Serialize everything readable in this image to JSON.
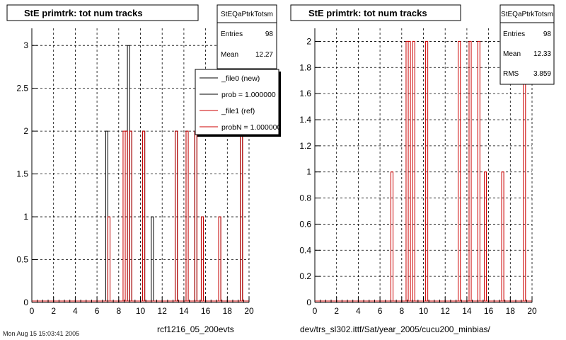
{
  "chart_data": [
    {
      "type": "bar",
      "title": "StE primtrk: tot num tracks",
      "xlim": [
        0,
        20
      ],
      "ylim": [
        0,
        3.2
      ],
      "xticks": [
        "0",
        "2",
        "4",
        "6",
        "8",
        "10",
        "12",
        "14",
        "16",
        "18",
        "20"
      ],
      "yticks": [
        "0",
        "0.5",
        "1",
        "1.5",
        "2",
        "2.5",
        "3"
      ],
      "grid": true,
      "bin_width": 0.2,
      "series": [
        {
          "name": "_file0 (new)",
          "color": "#000000",
          "x": [
            6.8,
            7.0,
            8.6,
            8.8,
            9.0,
            10.2,
            11.0,
            13.2,
            14.2,
            15.0,
            15.6,
            17.2,
            19.2
          ],
          "values": [
            2,
            1,
            2,
            3,
            2,
            2,
            1,
            2,
            2,
            2,
            1,
            1,
            2
          ]
        },
        {
          "name": "_file1 (ref)",
          "color": "#cc0000",
          "x": [
            7.0,
            8.4,
            8.6,
            9.0,
            10.2,
            13.2,
            14.2,
            15.0,
            15.6,
            17.2,
            19.2
          ],
          "values": [
            1,
            2,
            2,
            2,
            2,
            2,
            2,
            2,
            1,
            1,
            2
          ]
        }
      ],
      "stats": {
        "name": "StEQaPtrkTotsm",
        "entries_label": "Entries",
        "entries": "98",
        "mean_label": "Mean",
        "mean": "12.27"
      },
      "legend": [
        "_file0 (new)",
        "prob = 1.000000",
        "_file1 (ref)",
        "probN = 1.000000"
      ],
      "footer": "rcf1216_05_200evts"
    },
    {
      "type": "bar",
      "title": "StE primtrk: tot num tracks",
      "xlim": [
        0,
        20
      ],
      "ylim": [
        0,
        2.1
      ],
      "xticks": [
        "0",
        "2",
        "4",
        "6",
        "8",
        "10",
        "12",
        "14",
        "16",
        "18",
        "20"
      ],
      "yticks": [
        "0",
        "0.2",
        "0.4",
        "0.6",
        "0.8",
        "1",
        "1.2",
        "1.4",
        "1.6",
        "1.8",
        "2"
      ],
      "grid": true,
      "bin_width": 0.2,
      "series": [
        {
          "name": "_file1 (ref)",
          "color": "#cc0000",
          "x": [
            7.0,
            8.4,
            8.6,
            9.0,
            10.2,
            13.2,
            14.2,
            15.0,
            15.6,
            17.2,
            19.2
          ],
          "values": [
            1,
            2,
            2,
            2,
            2,
            2,
            2,
            2,
            1,
            1,
            2
          ]
        }
      ],
      "stats": {
        "name": "StEQaPtrkTotsm",
        "entries_label": "Entries",
        "entries": "98",
        "mean_label": "Mean",
        "mean": "12.33",
        "rms_label": "RMS",
        "rms": "3.859"
      },
      "footer": "dev/trs_sl302.ittf/Sat/year_2005/cucu200_minbias/"
    }
  ],
  "timestamp": "Mon Aug 15 15:03:41 2005"
}
